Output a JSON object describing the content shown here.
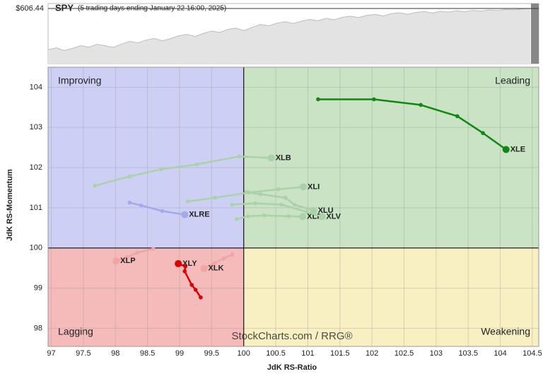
{
  "chart_data": [
    {
      "type": "area",
      "title": "SPY",
      "subtitle": "(5 trading days ending January 22 16:00, 2025)",
      "values": [
        585.2,
        586.1,
        584.8,
        585.9,
        587.3,
        586.5,
        588.0,
        587.2,
        586.4,
        588.1,
        589.5,
        588.7,
        590.2,
        591.0,
        589.8,
        590.9,
        592.4,
        593.1,
        592.0,
        593.6,
        594.8,
        594.1,
        595.7,
        596.3,
        595.0,
        596.8,
        598.2,
        597.5,
        598.9,
        599.6,
        598.7,
        599.9,
        600.8,
        600.1,
        601.4,
        600.6,
        601.9,
        602.5,
        601.8,
        602.9,
        603.4,
        602.6,
        603.8,
        604.2,
        603.5,
        604.4,
        604.9,
        604.1,
        605.0,
        604.6,
        605.3,
        604.8,
        605.5,
        605.1,
        605.7,
        605.4,
        606.0,
        605.8,
        606.2,
        606.44
      ],
      "color": "#bcbcbc",
      "ylim": [
        578,
        609
      ],
      "yticks": [
        {
          "value": 606.44,
          "label": "$606.44"
        }
      ]
    },
    {
      "type": "rrg",
      "xlabel": "JdK RS-Ratio",
      "ylabel": "JdK RS-Momentum",
      "watermark": "StockCharts.com / RRG®",
      "xlim": [
        96.95,
        104.6
      ],
      "ylim": [
        97.55,
        104.5
      ],
      "xticks": [
        97,
        97.5,
        98,
        98.5,
        99,
        99.5,
        100,
        100.5,
        101,
        101.5,
        102,
        102.5,
        103,
        103.5,
        104,
        104.5
      ],
      "yticks": [
        98,
        99,
        100,
        101,
        102,
        103,
        104
      ],
      "grid": true,
      "center": [
        100,
        100
      ],
      "quadrants": [
        {
          "name": "Improving",
          "corner": "top-left",
          "fill": "#cdd0f4",
          "color": "#3d4fc0"
        },
        {
          "name": "Leading",
          "corner": "top-right",
          "fill": "#c9e3c4",
          "color": "#2e8b2e"
        },
        {
          "name": "Lagging",
          "corner": "bottom-left",
          "fill": "#f5baba",
          "color": "#c02020"
        },
        {
          "name": "Weakening",
          "corner": "bottom-right",
          "fill": "#f8efc2",
          "color": "#d4b000"
        }
      ],
      "series": [
        {
          "name": "XLB",
          "color": "#a9d2a8",
          "x": [
            97.68,
            98.22,
            98.71,
            99.27,
            99.93,
            100.43
          ],
          "values": [
            101.55,
            101.78,
            101.96,
            102.08,
            102.28,
            102.24
          ]
        },
        {
          "name": "XLI",
          "color": "#a9d2a8",
          "x": [
            99.13,
            99.55,
            100.08,
            100.54,
            100.93
          ],
          "values": [
            101.16,
            101.25,
            101.38,
            101.46,
            101.52
          ]
        },
        {
          "name": "XLU",
          "color": "#a9d2a8",
          "x": [
            100.04,
            100.26,
            100.65,
            100.79,
            101.09
          ],
          "values": [
            101.39,
            101.34,
            101.25,
            101.08,
            100.93
          ]
        },
        {
          "name": "XLF",
          "color": "#a9d2a8",
          "x": [
            99.89,
            100.07,
            100.32,
            100.7,
            100.92
          ],
          "values": [
            100.72,
            100.79,
            100.81,
            100.79,
            100.78
          ]
        },
        {
          "name": "XLV",
          "color": "#a9d2a8",
          "x": [
            99.82,
            100.18,
            100.59,
            100.98,
            101.22
          ],
          "values": [
            101.08,
            101.11,
            101.08,
            100.9,
            100.78
          ]
        },
        {
          "name": "XLRE",
          "color": "#a3a9ea",
          "x": [
            98.22,
            98.4,
            98.73,
            99.08
          ],
          "values": [
            101.13,
            101.06,
            100.92,
            100.83
          ]
        },
        {
          "name": "XLP",
          "color": "#f0a4a4",
          "x": [
            98.59,
            98.34,
            98.18,
            98.01
          ],
          "values": [
            99.98,
            99.88,
            99.77,
            99.68
          ]
        },
        {
          "name": "XLK",
          "color": "#f0a4a4",
          "x": [
            99.82,
            99.69,
            99.55,
            99.38
          ],
          "values": [
            99.84,
            99.74,
            99.63,
            99.49
          ]
        },
        {
          "name": "XLE",
          "color": "#118811",
          "x": [
            101.16,
            102.03,
            102.76,
            103.33,
            103.73,
            104.09
          ],
          "values": [
            103.7,
            103.7,
            103.56,
            103.28,
            102.86,
            102.45
          ]
        },
        {
          "name": "XLY",
          "color": "#dd0000",
          "x": [
            99.33,
            99.25,
            99.19,
            99.08,
            99.09,
            98.98
          ],
          "values": [
            98.77,
            98.96,
            99.08,
            99.42,
            99.54,
            99.61
          ]
        }
      ]
    }
  ]
}
